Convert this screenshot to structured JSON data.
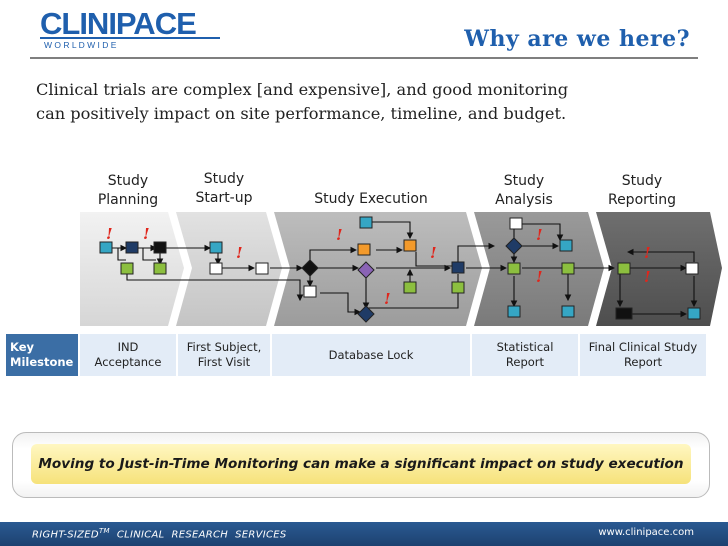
{
  "header": {
    "logo_main": "CLINIPACE",
    "logo_sub": "W O R L D W I D E",
    "title": "Why are we here?"
  },
  "intro": {
    "line1": "Clinical trials are complex [and expensive], and good monitoring",
    "line2": "can positively impact on site performance, timeline, and budget."
  },
  "phases": [
    {
      "line1": "Study",
      "line2": "Planning"
    },
    {
      "line1": "Study",
      "line2": "Start-up"
    },
    {
      "line1": "Study Execution",
      "line2": ""
    },
    {
      "line1": "Study",
      "line2": "Analysis"
    },
    {
      "line1": "Study",
      "line2": "Reporting"
    }
  ],
  "alert_symbol": "!",
  "milestones": {
    "key_line1": "Key",
    "key_line2": "Milestone",
    "items": [
      {
        "line1": "IND",
        "line2": "Acceptance"
      },
      {
        "line1": "First Subject,",
        "line2": "First Visit"
      },
      {
        "line1": "Database Lock",
        "line2": ""
      },
      {
        "line1": "Statistical",
        "line2": "Report"
      },
      {
        "line1": "Final Clinical Study",
        "line2": "Report"
      }
    ]
  },
  "callout": {
    "text": "Moving to Just-in-Time Monitoring can make a significant impact on study execution"
  },
  "footer": {
    "left_main": "RIGHT-SIZED",
    "left_tm": "TM",
    "left_rest": "  CLINICAL  RESEARCH  SERVICES",
    "right": "www.clinipace.com"
  },
  "colors": {
    "title_blue": "#1f5fad",
    "node_teal": "#35a6c4",
    "node_orange": "#f39a2b",
    "node_green": "#8cbf3f",
    "node_navy": "#1f3b66",
    "node_purple": "#8a63b5",
    "alert_red": "#e0261c",
    "milestone_key": "#3b6ea5",
    "milestone_bg": "#e3ecf7",
    "callout_yellow": "#f6e27a",
    "footer_blue": "#24507f"
  }
}
